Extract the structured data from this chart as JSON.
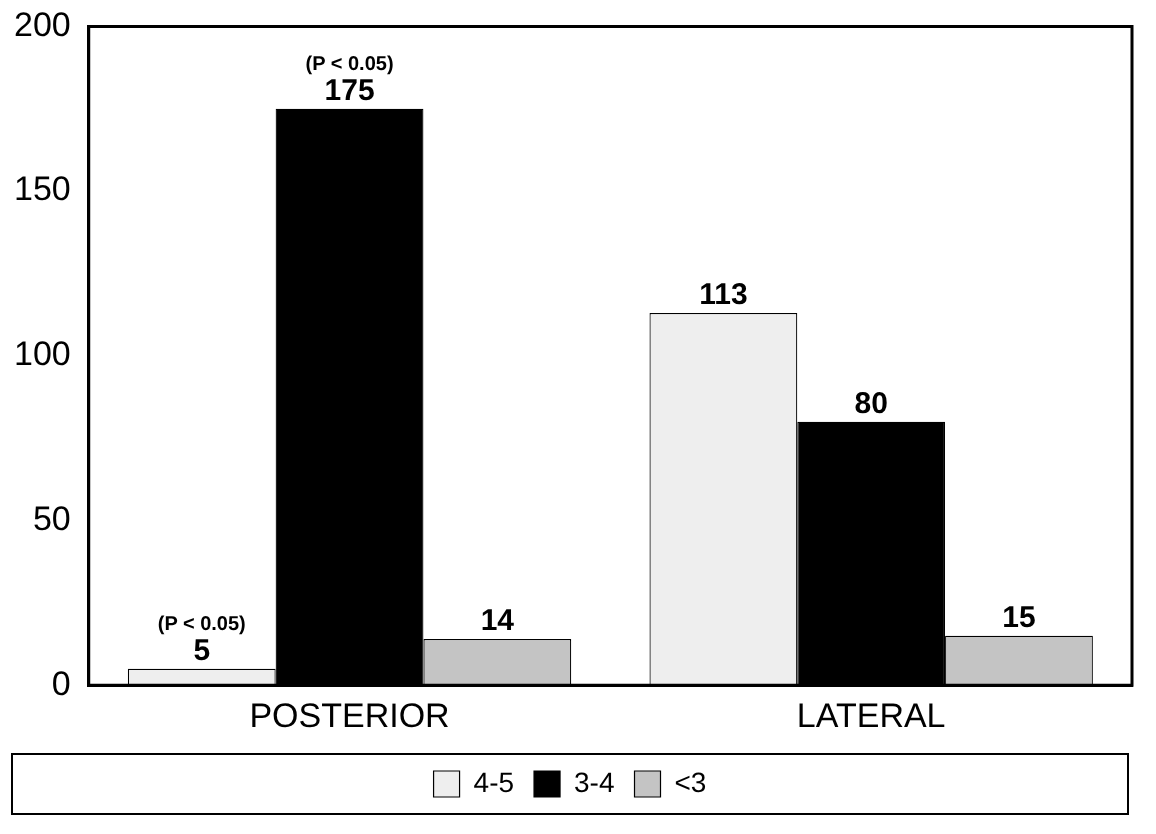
{
  "chart_data": {
    "type": "bar",
    "categories": [
      "POSTERIOR",
      "LATERAL"
    ],
    "series": [
      {
        "name": "4-5",
        "color": "#eeeeee",
        "values": [
          5,
          113
        ]
      },
      {
        "name": "3-4",
        "color": "#000000",
        "values": [
          175,
          80
        ]
      },
      {
        "name": "<3",
        "color": "#c4c4c4",
        "values": [
          14,
          15
        ]
      }
    ],
    "ylim": [
      0,
      200
    ],
    "yticks": [
      0,
      50,
      100,
      150,
      200
    ],
    "grid": false,
    "legend": "bottom",
    "data_labels": true,
    "annotations": [
      {
        "text": "(P < 0.05)",
        "x": "POSTERIOR",
        "y": 175
      },
      "(P < 0.05)"
    ]
  }
}
